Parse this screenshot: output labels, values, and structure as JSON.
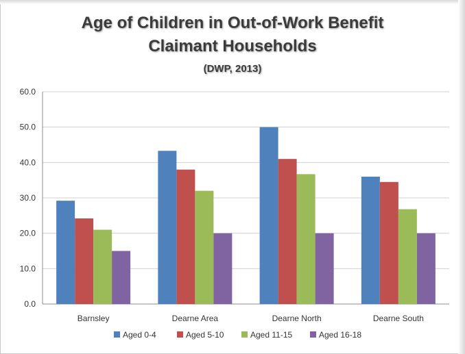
{
  "chart_data": {
    "type": "bar",
    "title": "Age of Children in Out-of-Work Benefit",
    "title_line2": "Claimant Households",
    "subtitle": "(DWP, 2013)",
    "categories": [
      "Barnsley",
      "Dearne Area",
      "Dearne North",
      "Dearne South"
    ],
    "series": [
      {
        "name": "Aged 0-4",
        "color": "#4f81bd",
        "values": [
          29.2,
          43.3,
          50.0,
          36.0
        ]
      },
      {
        "name": "Aged 5-10",
        "color": "#c0504d",
        "values": [
          24.2,
          38.0,
          41.0,
          34.5
        ]
      },
      {
        "name": "Aged 11-15",
        "color": "#9bbb59",
        "values": [
          21.0,
          32.0,
          36.7,
          26.8
        ]
      },
      {
        "name": "Aged 16-18",
        "color": "#8064a2",
        "values": [
          15.0,
          20.0,
          20.0,
          20.0
        ]
      }
    ],
    "ylim": [
      0,
      60
    ],
    "yticks": [
      "0.0",
      "10.0",
      "20.0",
      "30.0",
      "40.0",
      "50.0",
      "60.0"
    ],
    "grid": true,
    "legend": "bottom"
  }
}
